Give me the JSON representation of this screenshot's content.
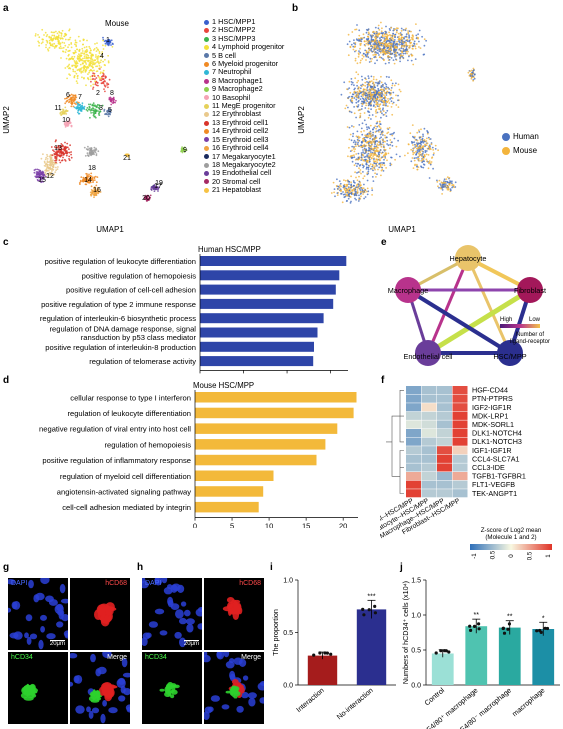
{
  "panel_labels": {
    "a": "a",
    "b": "b",
    "c": "c",
    "d": "d",
    "e": "e",
    "f": "f",
    "g": "g",
    "h": "h",
    "i": "i",
    "j": "j"
  },
  "panel_a": {
    "title": "Mouse",
    "xlabel": "UMAP1",
    "ylabel": "UMAP2",
    "legend": [
      {
        "n": "1",
        "label": "HSC/MPP1",
        "color": "#3a5fcd"
      },
      {
        "n": "2",
        "label": "HSC/MPP2",
        "color": "#e8453c"
      },
      {
        "n": "3",
        "label": "HSC/MPP3",
        "color": "#3cb44b"
      },
      {
        "n": "4",
        "label": "Lymphoid progenitor",
        "color": "#f3e03b"
      },
      {
        "n": "5",
        "label": "B cell",
        "color": "#5a78a8"
      },
      {
        "n": "6",
        "label": "Myeloid progenitor",
        "color": "#f08a24"
      },
      {
        "n": "7",
        "label": "Neutrophil",
        "color": "#2fb7d6"
      },
      {
        "n": "8",
        "label": "Macrophage1",
        "color": "#b8338c"
      },
      {
        "n": "9",
        "label": "Macrophage2",
        "color": "#8fd14f"
      },
      {
        "n": "10",
        "label": "Basophil",
        "color": "#f5a3b5"
      },
      {
        "n": "11",
        "label": "MegE progenitor",
        "color": "#e5d15a"
      },
      {
        "n": "12",
        "label": "Erythroblast",
        "color": "#e9c98c"
      },
      {
        "n": "13",
        "label": "Erythroid cell1",
        "color": "#d9342b"
      },
      {
        "n": "14",
        "label": "Erythroid cell2",
        "color": "#f08a24"
      },
      {
        "n": "15",
        "label": "Erythroid cell3",
        "color": "#7b3fa8"
      },
      {
        "n": "16",
        "label": "Erythroid cell4",
        "color": "#f0a442"
      },
      {
        "n": "17",
        "label": "Megakaryocyte1",
        "color": "#1a2a5e"
      },
      {
        "n": "18",
        "label": "Megakaryocyte2",
        "color": "#9e9e9e"
      },
      {
        "n": "19",
        "label": "Endothelial cell",
        "color": "#6a3d9a"
      },
      {
        "n": "20",
        "label": "Stromal cell",
        "color": "#a52a64"
      },
      {
        "n": "21",
        "label": "Hepatoblast",
        "color": "#f6c244"
      }
    ],
    "cluster_numbers": [
      "1",
      "2",
      "3",
      "4",
      "5",
      "6",
      "7",
      "8",
      "9",
      "10",
      "11",
      "12",
      "13",
      "14",
      "15",
      "16",
      "17",
      "18",
      "19",
      "20",
      "21"
    ]
  },
  "panel_b": {
    "xlabel": "UMAP1",
    "ylabel": "UMAP2",
    "legend": [
      {
        "label": "Human",
        "color": "#4a72c0"
      },
      {
        "label": "Mouse",
        "color": "#f3b43c"
      }
    ]
  },
  "chart_data": [
    {
      "type": "bar",
      "id": "c",
      "title": "Human HSC/MPP",
      "xlabel": "-log10(p.adjust)",
      "xlim": [
        0,
        17
      ],
      "xticks": [
        "0",
        "5",
        "10",
        "15"
      ],
      "color": "#2e45a8",
      "categories": [
        "positive regulation of leukocyte differentiation",
        "positive regulation of hemopoiesis",
        "positive regulation of cell-cell adhesion",
        "positive regulation of type 2 immune response",
        "regulation of interleukin-6 biosynthetic process",
        "regulation of DNA damage response, signal transduction  by p53 class mediator",
        "positive regulation of interleukin-8 production",
        "regulation of telomerase activity"
      ],
      "values": [
        16.8,
        16.0,
        15.6,
        15.3,
        14.2,
        13.5,
        13.1,
        13.0
      ]
    },
    {
      "type": "bar",
      "id": "d",
      "title": "Mouse HSC/MPP",
      "xlabel": "-log10(p.adjust)",
      "xlim": [
        0,
        22
      ],
      "xticks": [
        "0",
        "5",
        "10",
        "15",
        "20"
      ],
      "color": "#f3b93a",
      "categories": [
        "cellular response to type I interferon",
        "regulation of leukocyte differentiation",
        "negative regulation of viral entry into host cell",
        "regulation of hemopoiesis",
        "positive regulation of inflammatory response",
        "regulation of myeloid cell differentiation",
        "angiotensin-activated signaling pathway",
        "cell-cell adhesion mediated by integrin"
      ],
      "values": [
        21.8,
        21.4,
        19.2,
        17.6,
        16.4,
        10.6,
        9.2,
        8.6
      ]
    },
    {
      "type": "heatmap",
      "id": "f",
      "rows": [
        "HGF-CD44",
        "PTN-PTPRS",
        "IGF2-IGF1R",
        "MDK-LRP1",
        "MDK-SORL1",
        "DLK1-NOTCH4",
        "DLK1-NOTCH3",
        "IGF1-IGF1R",
        "CCL4-SLC7A1",
        "CCL3-IDE",
        "TGFB1-TGFBR1",
        "FLT1-VEGFB",
        "TEK-ANGPT1"
      ],
      "columns": [
        "Endothelial cell--HSC/MPP",
        "Hepatocyte--HSC/MPP",
        "Macrophage--HSC/MPP",
        "Fibroblast--HSC/MPP"
      ],
      "values": [
        [
          -0.9,
          -0.6,
          -0.6,
          1.3
        ],
        [
          -0.9,
          -0.6,
          -0.6,
          1.3
        ],
        [
          -0.9,
          0.2,
          -0.6,
          1.3
        ],
        [
          -0.4,
          -0.4,
          -0.5,
          1.4
        ],
        [
          -0.2,
          -0.3,
          -0.6,
          1.4
        ],
        [
          -0.9,
          -0.2,
          -0.4,
          1.4
        ],
        [
          -0.9,
          -0.5,
          -0.4,
          1.4
        ],
        [
          -0.5,
          -0.6,
          1.3,
          0.3
        ],
        [
          -0.6,
          -0.6,
          1.4,
          -0.5
        ],
        [
          -0.6,
          -0.5,
          1.4,
          -0.5
        ],
        [
          0.6,
          -0.4,
          -0.7,
          0.6
        ],
        [
          1.4,
          -0.6,
          -0.6,
          -0.5
        ],
        [
          1.4,
          -0.5,
          -0.5,
          -0.6
        ]
      ],
      "colorbar_title": "Z-score of Log2 mean\n(Molecule 1 and 2)",
      "colorbar_ticks": [
        "-1",
        "-0.5",
        "0",
        "0.5",
        "1"
      ]
    },
    {
      "type": "bar",
      "id": "i",
      "ylabel": "The proportion",
      "ylim": [
        0,
        1.0
      ],
      "yticks": [
        "0.0",
        "0.5",
        "1.0"
      ],
      "categories": [
        "Interaction",
        "No-interaction"
      ],
      "values": [
        0.28,
        0.72
      ],
      "colors": [
        "#a51c1c",
        "#2b2f8f"
      ],
      "annotation": "***"
    },
    {
      "type": "bar",
      "id": "j",
      "ylabel": "Numbers of hCD34⁺ cells (x10⁴)",
      "ylim": [
        0,
        1.5
      ],
      "yticks": [
        "0.0",
        "0.5",
        "1.0",
        "1.5"
      ],
      "categories": [
        "Control",
        "F4/80⁺ macrophage",
        "F4/80⁻ macrophage",
        "macrophage"
      ],
      "values": [
        0.45,
        0.84,
        0.82,
        0.8
      ],
      "colors": [
        "#9be0d6",
        "#4fc3b0",
        "#2aa9a0",
        "#1c8fa6"
      ],
      "annotations": [
        "",
        "**",
        "**",
        "*"
      ]
    }
  ],
  "panel_e": {
    "nodes": [
      {
        "label": "Hepatocyte",
        "color": "#e9c46a"
      },
      {
        "label": "Fibroblast",
        "color": "#a3185a"
      },
      {
        "label": "HSC/MPP",
        "color": "#2b2f8f"
      },
      {
        "label": "Endothelial cell",
        "color": "#6a3d9a"
      },
      {
        "label": "Macrophage",
        "color": "#b8338c"
      }
    ],
    "legend_high": "High",
    "legend_low": "Low",
    "legend_title": "Number of\nligand-receptor"
  },
  "micro_g": {
    "dapi": "DAPI",
    "hcd68": "hCD68",
    "hcd34": "hCD34",
    "merge": "Merge",
    "scale": "20μm"
  },
  "micro_h": {
    "dapi": "DAPI",
    "hcd68": "hCD68",
    "hcd34": "hCD34",
    "merge": "Merge",
    "scale": "20μm"
  }
}
